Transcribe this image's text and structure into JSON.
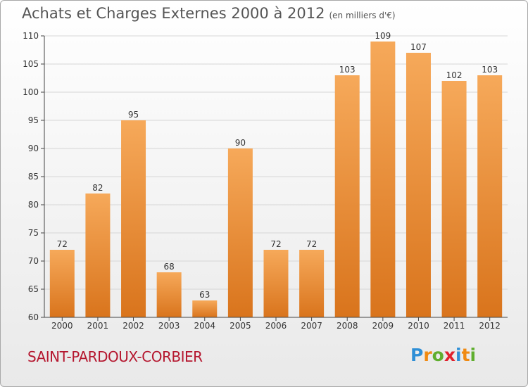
{
  "header": {
    "title": "Achats et Charges Externes 2000 à 2012",
    "subtitle": "(en milliers d'€)"
  },
  "commune": "SAINT-PARDOUX-CORBIER",
  "logo": {
    "letters": [
      "P",
      "r",
      "o",
      "x",
      "i",
      "t",
      "i"
    ],
    "colors": [
      "#2f8fd6",
      "#f08a12",
      "#5fae2e",
      "#e0212d",
      "#2f8fd6",
      "#f08a12",
      "#5fae2e"
    ]
  },
  "colors": {
    "bar_light": "#f6a95a",
    "bar_dark": "#d9741c",
    "grid": "#d6d6d6",
    "axis": "#444444",
    "text": "#333333"
  },
  "chart_data": {
    "type": "bar",
    "categories": [
      "2000",
      "2001",
      "2002",
      "2003",
      "2004",
      "2005",
      "2006",
      "2007",
      "2008",
      "2009",
      "2010",
      "2011",
      "2012"
    ],
    "values": [
      72,
      82,
      95,
      68,
      63,
      90,
      72,
      72,
      103,
      109,
      107,
      102,
      103
    ],
    "ylim": [
      60,
      110
    ],
    "yticks": [
      60,
      65,
      70,
      75,
      80,
      85,
      90,
      95,
      100,
      105,
      110
    ],
    "grid": true,
    "data_labels": true
  }
}
